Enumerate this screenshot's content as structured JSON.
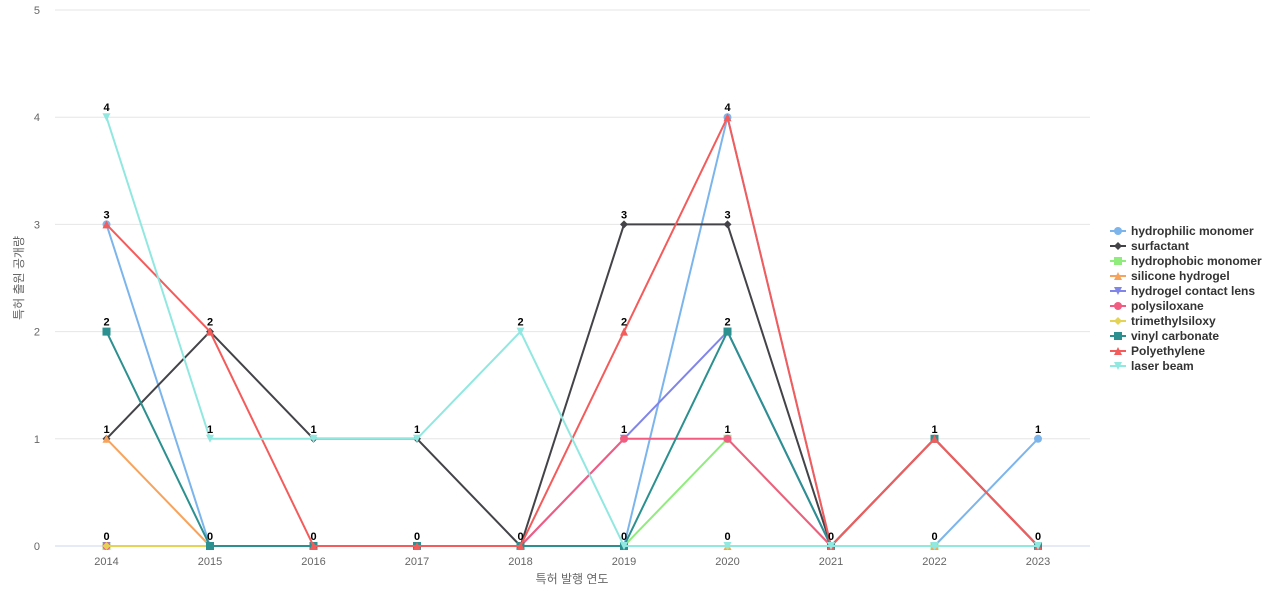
{
  "chart_data": {
    "type": "line",
    "title": "",
    "xlabel": "특허 발행 연도",
    "ylabel": "특허 출원 공개량",
    "ylim": [
      0,
      5
    ],
    "yticks": [
      0,
      1,
      2,
      3,
      4,
      5
    ],
    "grid": true,
    "legend_position": "right",
    "categories": [
      "2014",
      "2015",
      "2016",
      "2017",
      "2018",
      "2019",
      "2020",
      "2021",
      "2022",
      "2023"
    ],
    "series": [
      {
        "name": "hydrophilic monomer",
        "color": "#7cb5ec",
        "marker": "circle",
        "values": [
          3,
          0,
          0,
          0,
          0,
          0,
          4,
          0,
          0,
          1
        ]
      },
      {
        "name": "surfactant",
        "color": "#434348",
        "marker": "diamond",
        "values": [
          1,
          2,
          1,
          1,
          0,
          3,
          3,
          0,
          1,
          0
        ]
      },
      {
        "name": "hydrophobic monomer",
        "color": "#90ed7d",
        "marker": "square",
        "values": [
          0,
          0,
          0,
          0,
          0,
          0,
          1,
          0,
          0,
          0
        ]
      },
      {
        "name": "silicone hydrogel",
        "color": "#f7a35c",
        "marker": "triangle",
        "values": [
          1,
          0,
          0,
          0,
          0,
          0,
          0,
          0,
          0,
          0
        ]
      },
      {
        "name": "hydrogel contact lens",
        "color": "#8085e9",
        "marker": "triangle-down",
        "values": [
          0,
          0,
          0,
          0,
          0,
          1,
          2,
          0,
          0,
          0
        ]
      },
      {
        "name": "polysiloxane",
        "color": "#f15c80",
        "marker": "circle",
        "values": [
          0,
          0,
          0,
          0,
          0,
          1,
          1,
          0,
          1,
          0
        ]
      },
      {
        "name": "trimethylsiloxy",
        "color": "#e4d354",
        "marker": "diamond",
        "values": [
          0,
          0,
          0,
          0,
          0,
          0,
          0,
          0,
          0,
          0
        ]
      },
      {
        "name": "vinyl carbonate",
        "color": "#2b908f",
        "marker": "square",
        "values": [
          2,
          0,
          0,
          0,
          0,
          0,
          2,
          0,
          1,
          0
        ]
      },
      {
        "name": "Polyethylene",
        "color": "#f45b5b",
        "marker": "triangle",
        "values": [
          3,
          2,
          0,
          0,
          0,
          2,
          4,
          0,
          1,
          0
        ]
      },
      {
        "name": "laser beam",
        "color": "#91e8e1",
        "marker": "triangle-down",
        "values": [
          4,
          1,
          1,
          1,
          2,
          0,
          0,
          0,
          0,
          0
        ]
      }
    ],
    "data_labels": [
      {
        "x": "2014",
        "values": [
          4,
          3,
          2,
          1,
          0
        ]
      },
      {
        "x": "2015",
        "values": [
          2,
          1,
          0
        ]
      },
      {
        "x": "2016",
        "values": [
          1,
          0
        ]
      },
      {
        "x": "2017",
        "values": [
          1,
          0
        ]
      },
      {
        "x": "2018",
        "values": [
          2,
          0
        ]
      },
      {
        "x": "2019",
        "values": [
          3,
          2,
          1,
          0
        ]
      },
      {
        "x": "2020",
        "values": [
          4,
          3,
          2,
          1,
          0
        ]
      },
      {
        "x": "2021",
        "values": [
          0
        ]
      },
      {
        "x": "2022",
        "values": [
          1,
          0
        ]
      },
      {
        "x": "2023",
        "values": [
          1,
          0
        ]
      }
    ]
  }
}
